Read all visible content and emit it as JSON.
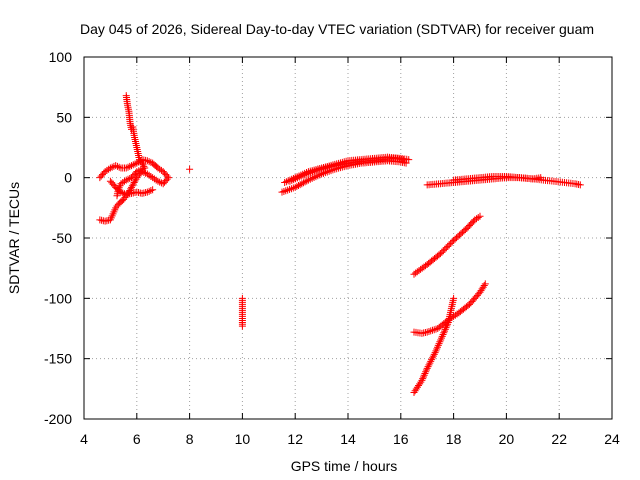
{
  "chart_data": {
    "type": "scatter",
    "title": "Day 045 of 2026, Sidereal Day-to-day VTEC variation (SDTVAR) for receiver guam",
    "xlabel": "GPS time / hours",
    "ylabel": "SDTVAR / TECUs",
    "xlim": [
      4,
      24
    ],
    "ylim": [
      -200,
      100
    ],
    "xticks": [
      4,
      6,
      8,
      10,
      12,
      14,
      16,
      18,
      20,
      22,
      24
    ],
    "yticks": [
      100,
      50,
      0,
      -50,
      -100,
      -150,
      -200
    ],
    "grid": true,
    "marker": "+",
    "color": "#ff0000",
    "series": [
      {
        "name": "SDTVAR",
        "segments": [
          {
            "points": [
              [
                5.6,
                68
              ],
              [
                5.65,
                60
              ],
              [
                5.7,
                55
              ],
              [
                5.75,
                45
              ],
              [
                5.8,
                40
              ],
              [
                5.85,
                42
              ],
              [
                5.9,
                35
              ],
              [
                6.0,
                25
              ],
              [
                6.1,
                15
              ],
              [
                6.2,
                12
              ],
              [
                6.3,
                8
              ],
              [
                6.0,
                5
              ],
              [
                5.8,
                0
              ],
              [
                5.6,
                -2
              ],
              [
                5.4,
                -5
              ],
              [
                5.3,
                -10
              ],
              [
                5.25,
                -15
              ]
            ]
          },
          {
            "points": [
              [
                4.6,
                -35
              ],
              [
                4.8,
                -36
              ],
              [
                5.0,
                -35
              ],
              [
                5.1,
                -30
              ],
              [
                5.2,
                -25
              ],
              [
                5.3,
                -22
              ],
              [
                5.4,
                -20
              ],
              [
                5.5,
                -18
              ],
              [
                5.6,
                -15
              ],
              [
                5.7,
                -12
              ],
              [
                5.8,
                -8
              ],
              [
                5.9,
                -4
              ],
              [
                6.0,
                0
              ],
              [
                6.1,
                3
              ],
              [
                6.2,
                5
              ],
              [
                6.4,
                3
              ],
              [
                6.6,
                0
              ],
              [
                6.8,
                -3
              ],
              [
                7.0,
                -5
              ],
              [
                7.2,
                0
              ],
              [
                7.0,
                5
              ],
              [
                6.8,
                8
              ],
              [
                6.6,
                12
              ],
              [
                6.4,
                14
              ],
              [
                6.2,
                15
              ],
              [
                6.0,
                12
              ],
              [
                5.8,
                10
              ],
              [
                5.6,
                8
              ],
              [
                5.4,
                8
              ],
              [
                5.2,
                10
              ],
              [
                5.0,
                8
              ],
              [
                4.8,
                5
              ],
              [
                4.6,
                0
              ]
            ]
          },
          {
            "points": [
              [
                5.0,
                -3
              ],
              [
                5.2,
                -8
              ],
              [
                5.4,
                -12
              ],
              [
                5.6,
                -14
              ],
              [
                5.8,
                -13
              ],
              [
                6.0,
                -12
              ],
              [
                6.2,
                -13
              ],
              [
                6.4,
                -12
              ],
              [
                6.6,
                -10
              ]
            ]
          },
          {
            "points": [
              [
                8.0,
                7
              ]
            ]
          },
          {
            "points": [
              [
                10.0,
                -100
              ],
              [
                10.0,
                -105
              ],
              [
                10.0,
                -110
              ],
              [
                10.0,
                -115
              ],
              [
                10.0,
                -120
              ],
              [
                10.0,
                -123
              ]
            ]
          },
          {
            "points": [
              [
                11.5,
                -12
              ],
              [
                12.0,
                -8
              ],
              [
                12.5,
                -2
              ],
              [
                13.0,
                3
              ],
              [
                13.5,
                7
              ],
              [
                14.0,
                10
              ],
              [
                14.5,
                12
              ],
              [
                15.0,
                13
              ],
              [
                15.5,
                14
              ],
              [
                16.0,
                13
              ],
              [
                16.2,
                12
              ]
            ]
          },
          {
            "points": [
              [
                11.6,
                -4
              ],
              [
                12.0,
                0
              ],
              [
                12.5,
                5
              ],
              [
                13.0,
                8
              ],
              [
                13.5,
                11
              ],
              [
                14.0,
                14
              ],
              [
                14.5,
                15
              ],
              [
                15.0,
                16
              ],
              [
                15.5,
                17
              ],
              [
                16.0,
                16
              ],
              [
                16.3,
                15
              ]
            ]
          },
          {
            "points": [
              [
                11.8,
                -3
              ],
              [
                12.3,
                2
              ],
              [
                12.8,
                6
              ],
              [
                13.3,
                9
              ],
              [
                13.8,
                11
              ],
              [
                14.3,
                13
              ],
              [
                14.8,
                14
              ],
              [
                15.3,
                15
              ],
              [
                15.8,
                16
              ],
              [
                16.1,
                15
              ]
            ]
          },
          {
            "points": [
              [
                17.0,
                -6
              ],
              [
                17.5,
                -5
              ],
              [
                18.0,
                -4
              ],
              [
                18.5,
                -3
              ],
              [
                19.0,
                -2
              ],
              [
                19.5,
                -1
              ],
              [
                20.0,
                0
              ],
              [
                20.5,
                0
              ],
              [
                21.0,
                -1
              ],
              [
                21.4,
                -2
              ],
              [
                21.8,
                -3
              ],
              [
                22.2,
                -4
              ],
              [
                22.6,
                -5
              ],
              [
                22.8,
                -6
              ]
            ]
          },
          {
            "points": [
              [
                18.0,
                -2
              ],
              [
                18.5,
                -1
              ],
              [
                19.0,
                0
              ],
              [
                19.5,
                1
              ],
              [
                20.0,
                1
              ],
              [
                20.5,
                0
              ],
              [
                21.0,
                -1
              ],
              [
                21.3,
                0
              ]
            ]
          },
          {
            "points": [
              [
                16.5,
                -80
              ],
              [
                17.0,
                -72
              ],
              [
                17.5,
                -63
              ],
              [
                18.0,
                -52
              ],
              [
                18.5,
                -42
              ],
              [
                18.8,
                -35
              ],
              [
                19.0,
                -32
              ]
            ]
          },
          {
            "points": [
              [
                16.5,
                -128
              ],
              [
                16.8,
                -129
              ],
              [
                17.0,
                -128
              ],
              [
                17.4,
                -125
              ],
              [
                17.8,
                -118
              ],
              [
                18.2,
                -112
              ],
              [
                18.6,
                -105
              ],
              [
                19.0,
                -95
              ],
              [
                19.2,
                -88
              ]
            ]
          },
          {
            "points": [
              [
                16.5,
                -178
              ],
              [
                16.8,
                -168
              ],
              [
                17.0,
                -158
              ],
              [
                17.3,
                -145
              ],
              [
                17.6,
                -130
              ],
              [
                17.8,
                -120
              ],
              [
                18.0,
                -100
              ]
            ]
          }
        ]
      }
    ]
  }
}
